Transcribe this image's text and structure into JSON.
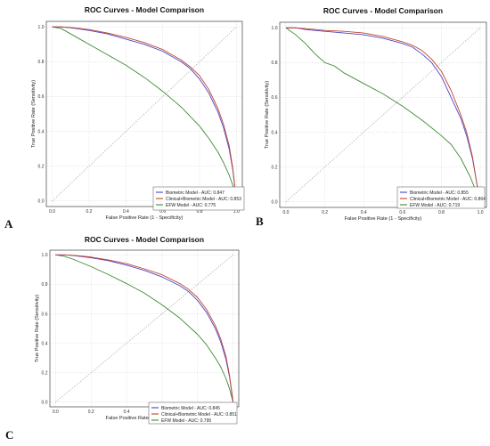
{
  "colors": {
    "biometric": "#4b44c6",
    "clinical": "#c2452f",
    "efw": "#3f8a33",
    "diagonal": "#9a9a9a"
  },
  "chart_data": [
    {
      "panel": "A",
      "type": "line",
      "title": "ROC Curves - Model Comparison",
      "xlabel": "False Positive Rate (1 - Specificity)",
      "ylabel": "True Positive Rate (Sensitivity)",
      "xlim": [
        0,
        1
      ],
      "ylim": [
        0,
        1
      ],
      "xticks": [
        "0.0",
        "0.2",
        "0.4",
        "0.6",
        "0.8",
        "1.0"
      ],
      "yticks": [
        "0.0",
        "0.2",
        "0.4",
        "0.6",
        "0.8",
        "1.0"
      ],
      "grid": true,
      "legend": "bottom-right",
      "reference_line": [
        [
          0,
          0
        ],
        [
          1,
          1
        ]
      ],
      "series": [
        {
          "key": "biometric",
          "name": "Biometric Model - AUC: 0.847",
          "x": [
            0,
            0.05,
            0.1,
            0.2,
            0.3,
            0.4,
            0.5,
            0.6,
            0.7,
            0.75,
            0.8,
            0.85,
            0.9,
            0.93,
            0.96,
            0.98,
            1.0
          ],
          "y": [
            1.0,
            1.0,
            0.995,
            0.98,
            0.96,
            0.93,
            0.9,
            0.86,
            0.8,
            0.76,
            0.7,
            0.62,
            0.51,
            0.42,
            0.3,
            0.18,
            0.0
          ]
        },
        {
          "key": "clinical",
          "name": "Clinical+Biometric Model - AUC: 0.853",
          "x": [
            0,
            0.05,
            0.1,
            0.2,
            0.3,
            0.4,
            0.5,
            0.6,
            0.7,
            0.75,
            0.8,
            0.85,
            0.9,
            0.93,
            0.96,
            0.98,
            1.0
          ],
          "y": [
            1.0,
            1.0,
            0.997,
            0.985,
            0.965,
            0.94,
            0.91,
            0.87,
            0.81,
            0.77,
            0.72,
            0.64,
            0.53,
            0.44,
            0.32,
            0.19,
            0.0
          ]
        },
        {
          "key": "efw",
          "name": "EFW Model - AUC: 0.775",
          "x": [
            0,
            0.05,
            0.1,
            0.15,
            0.2,
            0.3,
            0.4,
            0.5,
            0.6,
            0.7,
            0.8,
            0.85,
            0.9,
            0.93,
            0.96,
            0.98,
            1.0
          ],
          "y": [
            1.0,
            0.99,
            0.96,
            0.93,
            0.9,
            0.84,
            0.78,
            0.71,
            0.63,
            0.54,
            0.43,
            0.36,
            0.28,
            0.22,
            0.15,
            0.09,
            0.0
          ]
        }
      ]
    },
    {
      "panel": "B",
      "type": "line",
      "title": "ROC Curves - Model Comparison",
      "xlabel": "False Positive Rate (1 - Specificity)",
      "ylabel": "True Positive Rate (Sensitivity)",
      "xlim": [
        0,
        1
      ],
      "ylim": [
        0,
        1
      ],
      "xticks": [
        "0.0",
        "0.2",
        "0.4",
        "0.6",
        "0.8",
        "1.0"
      ],
      "yticks": [
        "0.0",
        "0.2",
        "0.4",
        "0.6",
        "0.8",
        "1.0"
      ],
      "grid": true,
      "legend": "bottom-right",
      "reference_line": [
        [
          0,
          0
        ],
        [
          1,
          1
        ]
      ],
      "series": [
        {
          "key": "biometric",
          "name": "Biometric Model - AUC: 0.855",
          "x": [
            0,
            0.05,
            0.1,
            0.2,
            0.3,
            0.4,
            0.5,
            0.6,
            0.65,
            0.7,
            0.75,
            0.8,
            0.85,
            0.9,
            0.93,
            0.96,
            0.98,
            1.0
          ],
          "y": [
            1.0,
            1.0,
            0.99,
            0.98,
            0.97,
            0.96,
            0.94,
            0.91,
            0.89,
            0.85,
            0.8,
            0.72,
            0.6,
            0.48,
            0.38,
            0.25,
            0.12,
            0.0
          ]
        },
        {
          "key": "clinical",
          "name": "Clinical+Biometric Model - AUC: 0.864",
          "x": [
            0,
            0.05,
            0.1,
            0.2,
            0.3,
            0.4,
            0.5,
            0.6,
            0.65,
            0.7,
            0.75,
            0.8,
            0.85,
            0.9,
            0.93,
            0.96,
            0.98,
            1.0
          ],
          "y": [
            1.0,
            1.0,
            0.995,
            0.985,
            0.98,
            0.97,
            0.95,
            0.92,
            0.9,
            0.87,
            0.82,
            0.75,
            0.64,
            0.5,
            0.4,
            0.26,
            0.12,
            0.0
          ]
        },
        {
          "key": "efw",
          "name": "EFW Model - AUC: 0.719",
          "x": [
            0,
            0.05,
            0.1,
            0.15,
            0.2,
            0.25,
            0.3,
            0.4,
            0.5,
            0.6,
            0.7,
            0.8,
            0.85,
            0.9,
            0.95,
            1.0
          ],
          "y": [
            1.0,
            0.96,
            0.91,
            0.85,
            0.8,
            0.78,
            0.74,
            0.68,
            0.62,
            0.55,
            0.47,
            0.38,
            0.33,
            0.25,
            0.14,
            0.0
          ]
        }
      ]
    },
    {
      "panel": "C",
      "type": "line",
      "title": "ROC Curves - Model Comparison",
      "xlabel": "False Positive Rate (1 - Specificity)",
      "ylabel": "True Positive Rate (Sensitivity)",
      "xlim": [
        0,
        1
      ],
      "ylim": [
        0,
        1
      ],
      "xticks": [
        "0.0",
        "0.2",
        "0.4",
        "0.6",
        "0.8",
        "1.0"
      ],
      "yticks": [
        "0.0",
        "0.2",
        "0.4",
        "0.6",
        "0.8",
        "1.0"
      ],
      "grid": true,
      "legend": "bottom-right",
      "reference_line": [
        [
          0,
          0
        ],
        [
          1,
          1
        ]
      ],
      "series": [
        {
          "key": "biometric",
          "name": "Biometric Model - AUC: 0.845",
          "x": [
            0,
            0.05,
            0.1,
            0.2,
            0.3,
            0.4,
            0.5,
            0.6,
            0.7,
            0.75,
            0.8,
            0.85,
            0.9,
            0.93,
            0.96,
            0.98,
            1.0
          ],
          "y": [
            1.0,
            1.0,
            0.995,
            0.98,
            0.96,
            0.93,
            0.895,
            0.85,
            0.79,
            0.75,
            0.69,
            0.61,
            0.5,
            0.41,
            0.29,
            0.17,
            0.0
          ]
        },
        {
          "key": "clinical",
          "name": "Clinical+Biometric Model - AUC: 0.851",
          "x": [
            0,
            0.05,
            0.1,
            0.2,
            0.3,
            0.4,
            0.5,
            0.6,
            0.7,
            0.75,
            0.8,
            0.85,
            0.9,
            0.93,
            0.96,
            0.98,
            1.0
          ],
          "y": [
            1.0,
            1.0,
            0.997,
            0.985,
            0.965,
            0.94,
            0.905,
            0.865,
            0.805,
            0.765,
            0.71,
            0.63,
            0.52,
            0.43,
            0.31,
            0.18,
            0.0
          ]
        },
        {
          "key": "efw",
          "name": "EFW Model - AUC: 0.795",
          "x": [
            0,
            0.05,
            0.1,
            0.15,
            0.2,
            0.3,
            0.4,
            0.5,
            0.6,
            0.7,
            0.8,
            0.85,
            0.9,
            0.93,
            0.96,
            0.98,
            1.0
          ],
          "y": [
            1.0,
            0.99,
            0.97,
            0.945,
            0.92,
            0.865,
            0.805,
            0.74,
            0.66,
            0.57,
            0.46,
            0.39,
            0.3,
            0.24,
            0.16,
            0.09,
            0.0
          ]
        }
      ]
    }
  ]
}
